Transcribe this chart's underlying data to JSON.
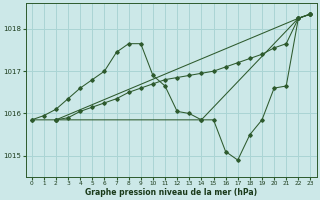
{
  "xlabel": "Graphe pression niveau de la mer (hPa)",
  "bg_color": "#cce8e8",
  "grid_color": "#aad4d4",
  "line_color": "#2d5a2d",
  "xlim": [
    -0.5,
    23.5
  ],
  "ylim": [
    1014.5,
    1018.6
  ],
  "yticks": [
    1015,
    1016,
    1017,
    1018
  ],
  "xticks": [
    0,
    1,
    2,
    3,
    4,
    5,
    6,
    7,
    8,
    9,
    10,
    11,
    12,
    13,
    14,
    15,
    16,
    17,
    18,
    19,
    20,
    21,
    22,
    23
  ],
  "series": [
    {
      "x": [
        0,
        1,
        2,
        3,
        4,
        5,
        6,
        7,
        8,
        9,
        10,
        11,
        12,
        13,
        14,
        22,
        23
      ],
      "y": [
        1015.85,
        1015.95,
        1016.1,
        1016.35,
        1016.6,
        1016.8,
        1017.0,
        1017.45,
        1017.65,
        1017.65,
        1016.9,
        1016.65,
        1016.05,
        1016.0,
        1015.85,
        1018.25,
        1018.35
      ]
    },
    {
      "x": [
        0,
        2,
        22,
        23
      ],
      "y": [
        1015.85,
        1015.85,
        1018.25,
        1018.35
      ]
    },
    {
      "x": [
        2,
        3,
        4,
        5,
        6,
        7,
        8,
        9,
        10,
        11,
        12,
        13,
        14,
        15,
        16,
        17,
        18,
        19,
        20,
        21,
        22,
        23
      ],
      "y": [
        1015.85,
        1015.9,
        1016.05,
        1016.15,
        1016.25,
        1016.35,
        1016.5,
        1016.6,
        1016.7,
        1016.8,
        1016.85,
        1016.9,
        1016.95,
        1017.0,
        1017.1,
        1017.2,
        1017.3,
        1017.4,
        1017.55,
        1017.65,
        1018.25,
        1018.35
      ]
    },
    {
      "x": [
        2,
        14,
        15,
        16,
        17,
        18,
        19,
        20,
        21,
        22,
        23
      ],
      "y": [
        1015.85,
        1015.85,
        1015.85,
        1015.1,
        1014.9,
        1015.5,
        1015.85,
        1016.6,
        1016.65,
        1018.25,
        1018.35
      ]
    }
  ]
}
